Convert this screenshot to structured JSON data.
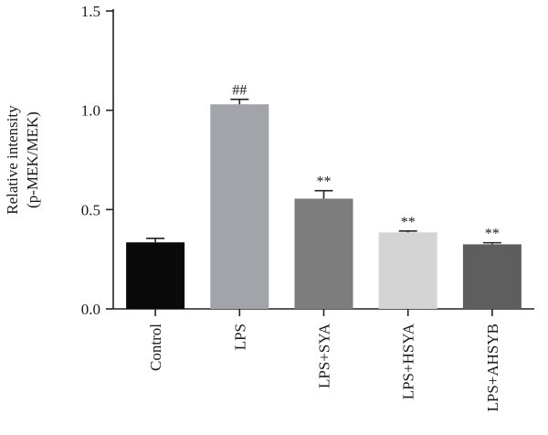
{
  "chart_data": {
    "type": "bar",
    "title": "",
    "xlabel": "",
    "ylabel_lines": [
      "Relative intensity",
      "(p-MEK/MEK)"
    ],
    "ylim": [
      0,
      1.5
    ],
    "yticks": [
      0.0,
      0.5,
      1.0,
      1.5
    ],
    "ytick_labels": [
      "0.0",
      "0.5",
      "1.0",
      "1.5"
    ],
    "categories": [
      "Control",
      "LPS",
      "LPS+SYA",
      "LPS+HSYA",
      "LPS+AHSYB"
    ],
    "values": [
      0.335,
      1.03,
      0.555,
      0.385,
      0.325
    ],
    "errors": [
      0.02,
      0.025,
      0.04,
      0.007,
      0.008
    ],
    "significance": [
      "",
      "##",
      "**",
      "**",
      "**"
    ],
    "colors": [
      "#0a0a0a",
      "#a3a3aa",
      "#7d7d7d",
      "#d4d4d4",
      "#5e5e5e"
    ],
    "grid": false,
    "legend": "none"
  }
}
